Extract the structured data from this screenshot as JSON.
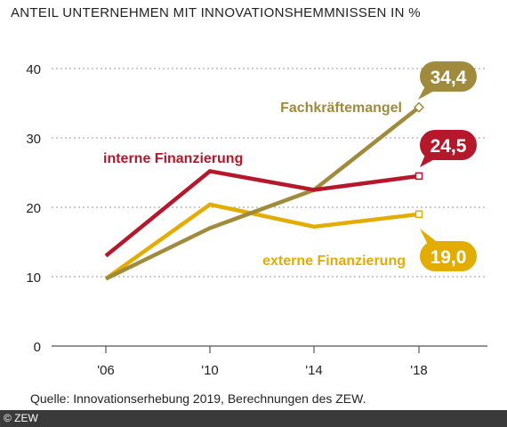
{
  "chart_data": {
    "type": "line",
    "title": "ANTEIL UNTERNEHMEN MIT INNOVATIONSHEMMNISSEN IN %",
    "x": [
      "'06",
      "'10",
      "'14",
      "'18"
    ],
    "ylim": [
      0,
      40
    ],
    "yticks": [
      "0",
      "10",
      "20",
      "30",
      "40"
    ],
    "grid": true,
    "series": [
      {
        "name": "Fachkräftemangel",
        "values": [
          9.7,
          17,
          22.5,
          34.4
        ],
        "color": "#a08a3c",
        "end_label": "34,4"
      },
      {
        "name": "interne Finanzierung",
        "values": [
          13,
          25.2,
          22.5,
          24.5
        ],
        "color": "#b5182a",
        "end_label": "24,5"
      },
      {
        "name": "externe Finanzierung",
        "values": [
          9.7,
          20.4,
          17.2,
          19.0
        ],
        "color": "#e2ac00",
        "end_label": "19,0"
      }
    ]
  },
  "source": "Quelle: Innovationserhebung 2019, Berechnungen des ZEW.",
  "copyright": "© ZEW"
}
